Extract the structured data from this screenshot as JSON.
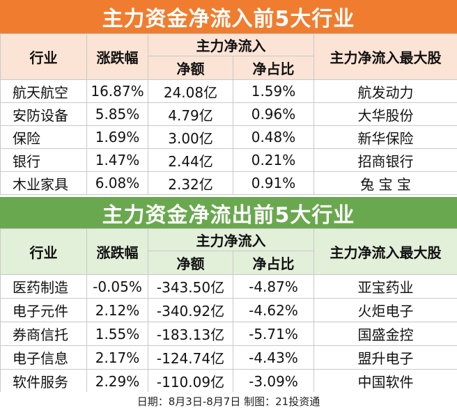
{
  "inflow": {
    "title": "主力资金净流入前5大行业",
    "headers": {
      "industry": "行业",
      "change": "涨跌幅",
      "net_group": "主力净流入",
      "net_amount": "净额",
      "net_ratio": "净占比",
      "top_stock": "主力净流入最大股"
    },
    "rows": [
      {
        "industry": "航天航空",
        "change": "16.87%",
        "net_amount": "24.08亿",
        "net_ratio": "1.59%",
        "top_stock": "航发动力"
      },
      {
        "industry": "安防设备",
        "change": "5.85%",
        "net_amount": "4.79亿",
        "net_ratio": "0.96%",
        "top_stock": "大华股份"
      },
      {
        "industry": "保险",
        "change": "1.69%",
        "net_amount": "3.00亿",
        "net_ratio": "0.48%",
        "top_stock": "新华保险"
      },
      {
        "industry": "银行",
        "change": "1.47%",
        "net_amount": "2.44亿",
        "net_ratio": "0.21%",
        "top_stock": "招商银行"
      },
      {
        "industry": "木业家具",
        "change": "6.08%",
        "net_amount": "2.32亿",
        "net_ratio": "0.91%",
        "top_stock": "兔 宝 宝"
      }
    ]
  },
  "outflow": {
    "title": "主力资金净流出前5大行业",
    "headers": {
      "industry": "行业",
      "change": "涨跌幅",
      "net_group": "主力净流入",
      "net_amount": "净额",
      "net_ratio": "净占比",
      "top_stock": "主力净流入最大股"
    },
    "rows": [
      {
        "industry": "医药制造",
        "change": "-0.05%",
        "net_amount": "-343.50亿",
        "net_ratio": "-4.87%",
        "top_stock": "亚宝药业"
      },
      {
        "industry": "电子元件",
        "change": "2.12%",
        "net_amount": "-340.92亿",
        "net_ratio": "-4.62%",
        "top_stock": "火炬电子"
      },
      {
        "industry": "券商信托",
        "change": "1.55%",
        "net_amount": "-183.13亿",
        "net_ratio": "-5.71%",
        "top_stock": "国盛金控"
      },
      {
        "industry": "电子信息",
        "change": "2.17%",
        "net_amount": "-124.74亿",
        "net_ratio": "-4.43%",
        "top_stock": "盟升电子"
      },
      {
        "industry": "软件服务",
        "change": "2.29%",
        "net_amount": "-110.09亿",
        "net_ratio": "-3.09%",
        "top_stock": "中国软件"
      }
    ]
  },
  "footer": "日期：8月3日-8月7日 制图：21投资通",
  "colors": {
    "inflow_banner": "#f07d2f",
    "inflow_header": "#fbe4d5",
    "outflow_banner": "#6aa84f",
    "outflow_header": "#e2efd9"
  }
}
